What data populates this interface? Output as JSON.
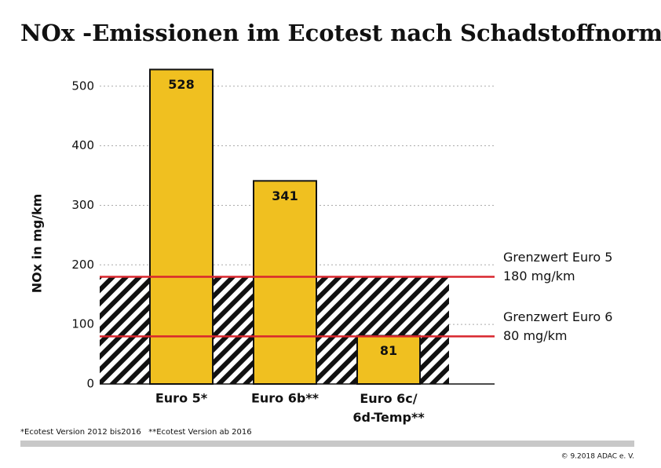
{
  "chart_data": {
    "type": "bar",
    "title": "NOx -Emissionen im Ecotest nach Schadstoffnorm",
    "y_label": "NOx in mg/km",
    "categories": [
      "Euro 5*",
      "Euro 6b**",
      "Euro 6c/\n6d-Temp**"
    ],
    "values": [
      528,
      341,
      81
    ],
    "color": "#f0c020",
    "ylim": [
      0,
      530
    ],
    "yticks": [
      0,
      100,
      200,
      300,
      400,
      500
    ],
    "grid": true,
    "reference_lines": [
      {
        "value": 180,
        "label": "Grenzwert Euro 5",
        "value_label": "180 mg/km",
        "color": "#d8262e"
      },
      {
        "value": 80,
        "label": "Grenzwert Euro 6",
        "value_label": "80 mg/km",
        "color": "#d8262e"
      }
    ],
    "footnote": "*Ecotest Version 2012 bis2016   **Ecotest Version ab 2016",
    "copyright": "© 9.2018 ADAC e. V."
  }
}
